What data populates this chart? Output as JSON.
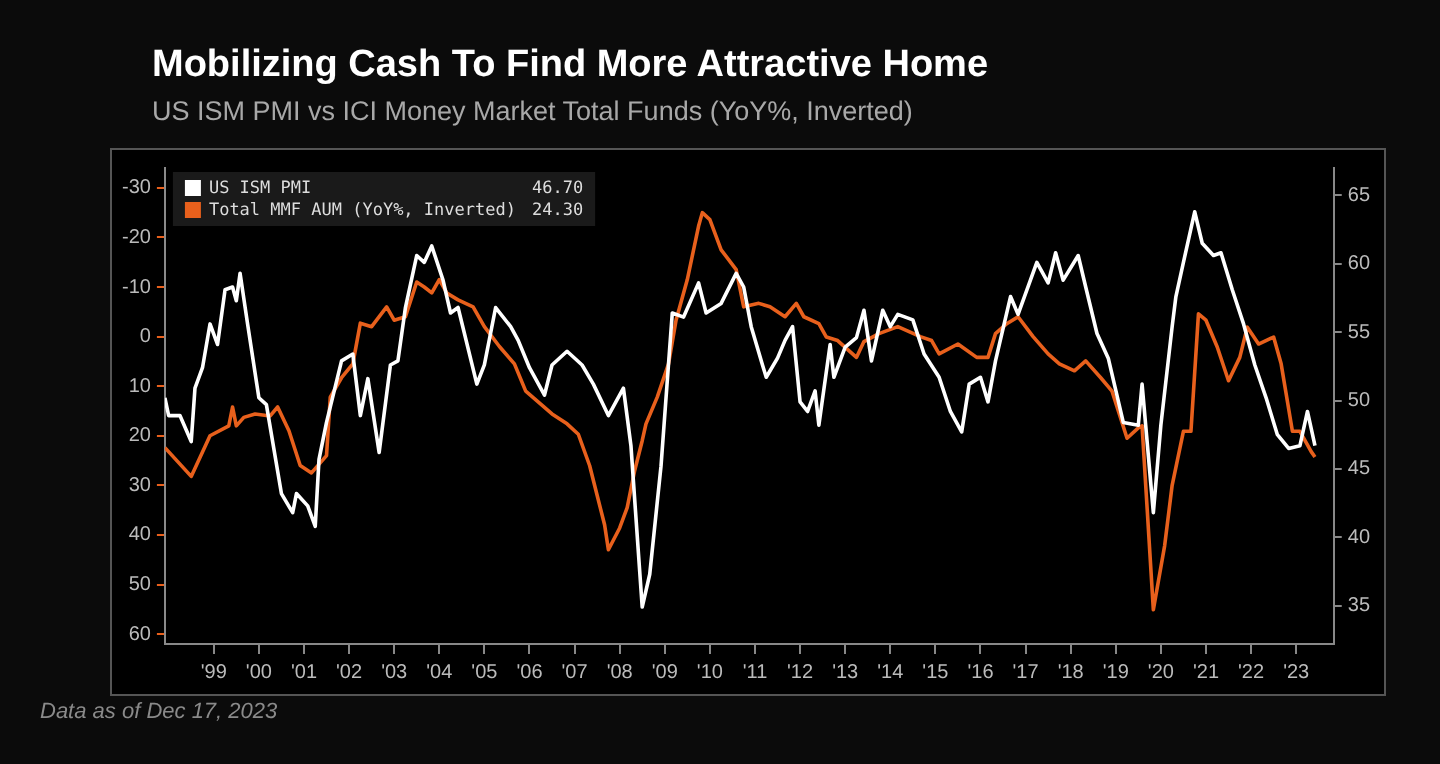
{
  "chart_data": {
    "type": "line",
    "title": "Mobilizing Cash To Find More Attractive Home",
    "subtitle": "US ISM PMI vs ICI Money Market Total Funds (YoY%, Inverted)",
    "annotations": [
      "46.70",
      "24.30",
      "Data as of Dec 17, 2023"
    ],
    "series": [
      {
        "name": "US ISM PMI",
        "color": "#ffffff",
        "axis": "y2",
        "x": [
          "1998-06",
          "1998-07",
          "1998-10",
          "1999-01",
          "1999-02",
          "1999-04",
          "1999-06",
          "1999-08",
          "1999-10",
          "1999-12",
          "2000-01",
          "2000-02",
          "2000-04",
          "2000-07",
          "2000-09",
          "2001-01",
          "2001-04",
          "2001-05",
          "2001-08",
          "2001-10",
          "2001-11",
          "2002-01",
          "2002-05",
          "2002-08",
          "2002-10",
          "2002-12",
          "2003-03",
          "2003-06",
          "2003-08",
          "2003-10",
          "2004-01",
          "2004-03",
          "2004-05",
          "2004-08",
          "2004-10",
          "2004-12",
          "2005-05",
          "2005-07",
          "2005-10",
          "2006-02",
          "2006-04",
          "2006-07",
          "2006-11",
          "2007-01",
          "2007-05",
          "2007-09",
          "2007-12",
          "2008-04",
          "2008-08",
          "2008-10",
          "2008-12",
          "2009-01",
          "2009-03",
          "2009-06",
          "2009-09",
          "2009-12",
          "2010-04",
          "2010-06",
          "2010-10",
          "2011-02",
          "2011-04",
          "2011-06",
          "2011-09",
          "2011-10",
          "2012-01",
          "2012-03",
          "2012-05",
          "2012-07",
          "2012-09",
          "2012-11",
          "2012-12",
          "2013-03",
          "2013-04",
          "2013-07",
          "2013-10",
          "2013-12",
          "2014-02",
          "2014-05",
          "2014-07",
          "2014-09",
          "2015-01",
          "2015-04",
          "2015-08",
          "2015-11",
          "2016-02",
          "2016-04",
          "2016-07",
          "2016-09",
          "2016-11",
          "2017-03",
          "2017-05",
          "2017-10",
          "2018-01",
          "2018-03",
          "2018-05",
          "2018-09",
          "2018-11",
          "2019-02",
          "2019-05",
          "2019-09",
          "2020-01",
          "2020-02",
          "2020-05",
          "2020-07",
          "2020-10",
          "2020-11",
          "2021-01",
          "2021-04",
          "2021-06",
          "2021-09",
          "2021-11",
          "2022-02",
          "2022-05",
          "2022-08",
          "2022-11",
          "2023-02",
          "2023-05",
          "2023-08",
          "2023-10",
          "2023-12"
        ],
        "values": [
          50.2,
          48.9,
          48.9,
          47,
          50.9,
          52.4,
          55.6,
          54.1,
          58.1,
          58.3,
          57.3,
          59.3,
          55.6,
          50.2,
          49.7,
          43.2,
          41.8,
          43.2,
          42.3,
          40.8,
          45.7,
          48.4,
          52.9,
          53.4,
          48.9,
          51.6,
          46.2,
          52.6,
          52.9,
          56.8,
          60.6,
          60.1,
          61.3,
          58.8,
          56.4,
          56.8,
          51.2,
          52.6,
          56.8,
          55.4,
          54.4,
          52.4,
          50.4,
          52.6,
          53.6,
          52.6,
          51.2,
          48.9,
          50.9,
          46.7,
          38.8,
          34.9,
          37.3,
          45.2,
          56.4,
          56.1,
          58.6,
          56.4,
          57.1,
          59.3,
          58.3,
          55.4,
          52.6,
          51.7,
          53.1,
          54.4,
          55.4,
          49.9,
          49.2,
          50.7,
          48.2,
          54.1,
          51.7,
          53.9,
          54.6,
          56.6,
          52.9,
          56.6,
          55.4,
          56.3,
          55.9,
          53.4,
          51.7,
          49.2,
          47.7,
          51.2,
          51.7,
          49.9,
          52.9,
          57.6,
          56.3,
          60.1,
          58.6,
          60.8,
          58.8,
          60.6,
          58.3,
          54.9,
          53.1,
          48.4,
          48.2,
          51.2,
          41.8,
          48.2,
          55.4,
          57.6,
          60.1,
          63.8,
          61.5,
          60.6,
          60.8,
          58.1,
          55.6,
          52.6,
          50.2,
          47.5,
          46.5,
          46.7,
          49.2,
          46.7
        ]
      },
      {
        "name": "Total MMF AUM (YoY%, Inverted)",
        "color": "#e8601c",
        "x": [
          "1998-06",
          "1999-01",
          "1999-06",
          "1999-11",
          "1999-12",
          "2000-01",
          "2000-03",
          "2000-06",
          "2000-10",
          "2000-12",
          "2001-03",
          "2001-06",
          "2001-09",
          "2002-01",
          "2002-02",
          "2002-05",
          "2002-08",
          "2002-10",
          "2003-01",
          "2003-05",
          "2003-07",
          "2003-10",
          "2004-01",
          "2004-03",
          "2004-05",
          "2004-07",
          "2004-09",
          "2004-12",
          "2005-04",
          "2005-07",
          "2005-11",
          "2006-03",
          "2006-06",
          "2006-10",
          "2007-01",
          "2007-05",
          "2007-08",
          "2007-11",
          "2008-03",
          "2008-04",
          "2008-07",
          "2008-09",
          "2008-11",
          "2009-01",
          "2009-02",
          "2009-05",
          "2009-08",
          "2009-10",
          "2010-01",
          "2010-04",
          "2010-05",
          "2010-07",
          "2010-10",
          "2011-02",
          "2011-04",
          "2011-08",
          "2011-11",
          "2012-03",
          "2012-06",
          "2012-08",
          "2012-12",
          "2013-02",
          "2013-05",
          "2013-10",
          "2013-12",
          "2014-04",
          "2014-09",
          "2015-03",
          "2015-06",
          "2015-08",
          "2016-01",
          "2016-06",
          "2016-09",
          "2016-11",
          "2017-02",
          "2017-05",
          "2017-09",
          "2018-01",
          "2018-04",
          "2018-08",
          "2018-11",
          "2019-03",
          "2019-06",
          "2019-10",
          "2020-01",
          "2020-02",
          "2020-05",
          "2020-08",
          "2020-10",
          "2021-01",
          "2021-03",
          "2021-05",
          "2021-07",
          "2021-10",
          "2022-01",
          "2022-04",
          "2022-06",
          "2022-09",
          "2023-01",
          "2023-03",
          "2023-06",
          "2023-08",
          "2023-11",
          "2023-12"
        ],
        "values": [
          22.4,
          28.2,
          20,
          18,
          14.2,
          18,
          16.3,
          15.6,
          16,
          14.2,
          19,
          26,
          27.5,
          24,
          12.2,
          8.3,
          5.5,
          -2.7,
          -2,
          -6,
          -3.3,
          -4,
          -11,
          -10,
          -8.8,
          -11.5,
          -8.8,
          -7.4,
          -6,
          -2,
          2,
          5.5,
          11,
          13.6,
          15.6,
          17.6,
          19.7,
          26,
          38,
          43,
          38.6,
          34.5,
          27,
          21,
          17.6,
          12.2,
          5.5,
          -3.3,
          -11.5,
          -22.3,
          -25,
          -23.6,
          -17.5,
          -13.5,
          -6,
          -6.7,
          -6,
          -4,
          -6.7,
          -4,
          -2.6,
          0.1,
          0.8,
          4.2,
          1,
          -0.6,
          -2,
          0,
          0.8,
          3.5,
          1.5,
          4.2,
          4.2,
          -0.6,
          -2.6,
          -4,
          0,
          3.5,
          5.5,
          6.9,
          4.9,
          8.3,
          11,
          20.5,
          18.4,
          18,
          55.1,
          42.2,
          30,
          19.1,
          19.1,
          -4.6,
          -3.3,
          2.1,
          8.9,
          4.2,
          -1.9,
          1.5,
          0.1,
          5.5,
          19.1,
          19.1,
          23.2,
          24.3
        ]
      }
    ],
    "xlim": [
      "1998-06",
      "2024-05"
    ],
    "xticks": [
      {
        "value": "1999-07",
        "label": "'99"
      },
      {
        "value": "2000-07",
        "label": "'00"
      },
      {
        "value": "2001-07",
        "label": "'01"
      },
      {
        "value": "2002-07",
        "label": "'02"
      },
      {
        "value": "2003-07",
        "label": "'03"
      },
      {
        "value": "2004-07",
        "label": "'04"
      },
      {
        "value": "2005-07",
        "label": "'05"
      },
      {
        "value": "2006-07",
        "label": "'06"
      },
      {
        "value": "2007-07",
        "label": "'07"
      },
      {
        "value": "2008-07",
        "label": "'08"
      },
      {
        "value": "2009-07",
        "label": "'09"
      },
      {
        "value": "2010-07",
        "label": "'10"
      },
      {
        "value": "2011-07",
        "label": "'11"
      },
      {
        "value": "2012-07",
        "label": "'12"
      },
      {
        "value": "2013-07",
        "label": "'13"
      },
      {
        "value": "2014-07",
        "label": "'14"
      },
      {
        "value": "2015-07",
        "label": "'15"
      },
      {
        "value": "2016-07",
        "label": "'16"
      },
      {
        "value": "2017-07",
        "label": "'17"
      },
      {
        "value": "2018-07",
        "label": "'18"
      },
      {
        "value": "2019-07",
        "label": "'19"
      },
      {
        "value": "2020-07",
        "label": "'20"
      },
      {
        "value": "2021-07",
        "label": "'21"
      },
      {
        "value": "2022-07",
        "label": "'22"
      },
      {
        "value": "2023-07",
        "label": "'23"
      }
    ],
    "ylim": [
      62,
      -34
    ],
    "yticks": [
      -30,
      -20,
      -10,
      0,
      10,
      20,
      30,
      40,
      50,
      60
    ],
    "y2lim": [
      32.2,
      67
    ],
    "y2ticks": [
      35,
      40,
      45,
      50,
      55,
      60,
      65
    ],
    "grid": false,
    "legend": "top left",
    "marker": "none",
    "line_style": "solid"
  }
}
